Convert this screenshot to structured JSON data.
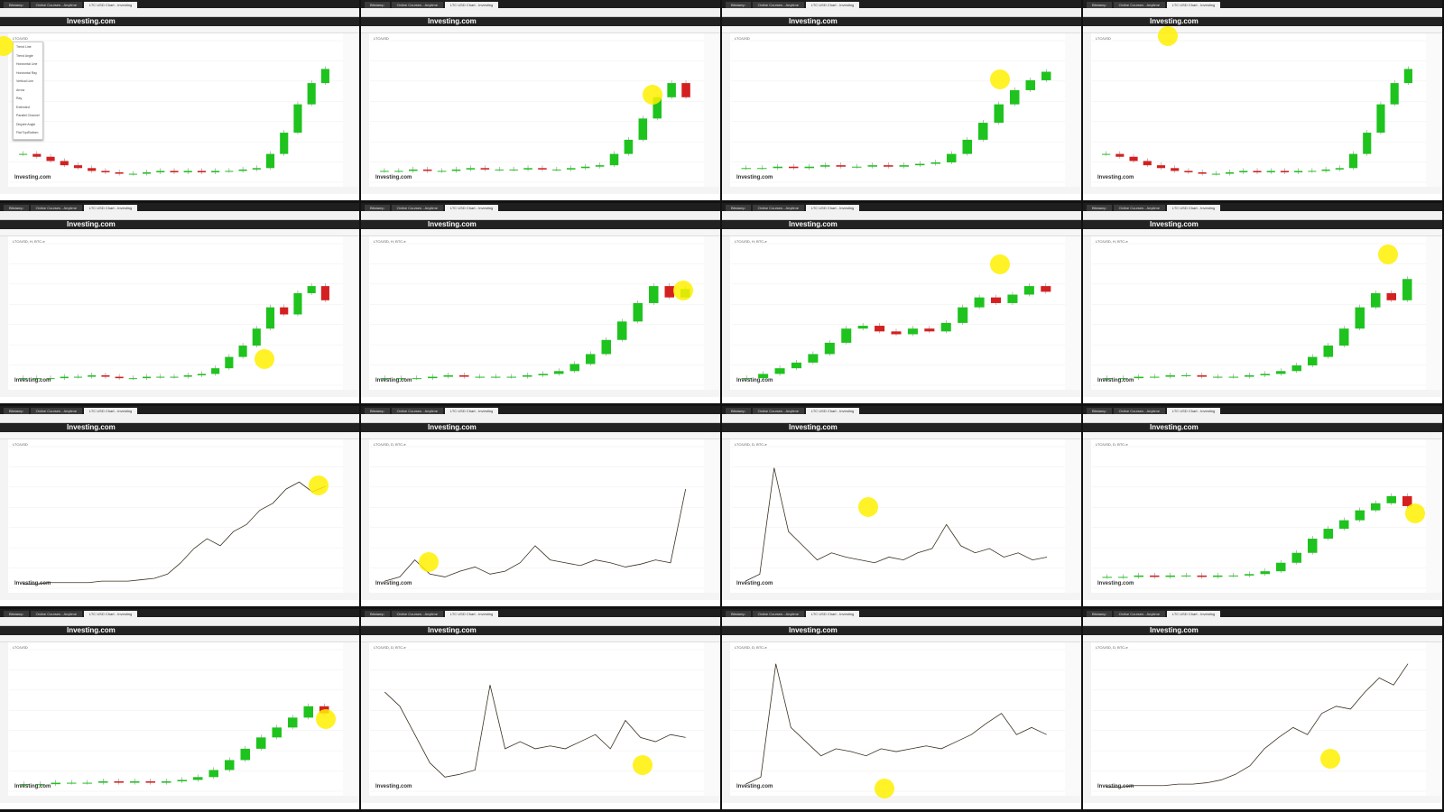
{
  "tabs": [
    "Bitstamp",
    "Online Courses - Anytime",
    "LTC USD Chart - Investing"
  ],
  "logo": "Investing.com",
  "watermark": "Investing.com",
  "tiles": [
    {
      "symbol": "LTC/USD",
      "type": "candle",
      "values": [
        20,
        18,
        15,
        12,
        10,
        8,
        7,
        6,
        6,
        7,
        8,
        7,
        8,
        7,
        8,
        8,
        9,
        10,
        20,
        35,
        55,
        70,
        80
      ],
      "menu": [
        "Trend Line",
        "Trend Angle",
        "Horizontal Line",
        "Horizontal Ray",
        "Vertical Line",
        "Arrow",
        "Ray",
        "Extended",
        "Parallel Channel",
        "Disjoint Angle",
        "Flat Top/Bottom"
      ]
    },
    {
      "symbol": "LTC/USD",
      "type": "candle",
      "values": [
        8,
        8,
        9,
        8,
        8,
        9,
        10,
        9,
        9,
        9,
        10,
        9,
        9,
        10,
        11,
        12,
        20,
        30,
        45,
        60,
        70,
        60
      ]
    },
    {
      "symbol": "LTC/USD",
      "type": "candle",
      "values": [
        10,
        10,
        11,
        10,
        11,
        12,
        11,
        11,
        12,
        11,
        12,
        13,
        14,
        20,
        30,
        42,
        55,
        65,
        72,
        78
      ]
    },
    {
      "symbol": "LTC/USD",
      "type": "candle",
      "values": [
        20,
        18,
        15,
        12,
        10,
        8,
        7,
        6,
        6,
        7,
        8,
        7,
        8,
        7,
        8,
        8,
        9,
        10,
        20,
        35,
        55,
        70,
        80
      ]
    },
    {
      "symbol": "LTC/USD, H, BTC-e",
      "type": "candle",
      "values": [
        5,
        5,
        5,
        6,
        6,
        7,
        6,
        5,
        5,
        6,
        6,
        6,
        7,
        8,
        12,
        20,
        28,
        40,
        55,
        50,
        65,
        70,
        60
      ]
    },
    {
      "symbol": "LTC/USD, H, BTC-e",
      "type": "candle",
      "values": [
        5,
        5,
        5,
        6,
        7,
        6,
        6,
        6,
        6,
        7,
        8,
        10,
        15,
        22,
        32,
        45,
        58,
        70,
        62,
        68
      ]
    },
    {
      "symbol": "LTC/USD, H, BTC-e",
      "type": "candle",
      "values": [
        5,
        8,
        12,
        16,
        22,
        30,
        40,
        42,
        38,
        36,
        40,
        38,
        44,
        55,
        62,
        58,
        64,
        70,
        66
      ]
    },
    {
      "symbol": "LTC/USD, H, BTC-e",
      "type": "candle",
      "values": [
        5,
        5,
        6,
        6,
        7,
        7,
        6,
        6,
        6,
        7,
        8,
        10,
        14,
        20,
        28,
        40,
        55,
        65,
        60,
        75
      ]
    },
    {
      "symbol": "LTC/USD",
      "type": "line",
      "values": [
        3,
        3,
        4,
        4,
        4,
        4,
        5,
        5,
        5,
        6,
        7,
        10,
        18,
        28,
        35,
        30,
        40,
        45,
        55,
        60,
        70,
        75,
        68,
        72
      ]
    },
    {
      "symbol": "LTC/USD, D, BTC-e",
      "type": "line",
      "values": [
        5,
        8,
        20,
        10,
        8,
        12,
        15,
        10,
        12,
        18,
        30,
        20,
        18,
        16,
        20,
        18,
        15,
        17,
        20,
        18,
        70
      ]
    },
    {
      "symbol": "LTC/USD, D, BTC-e",
      "type": "line",
      "values": [
        5,
        10,
        85,
        40,
        30,
        20,
        25,
        22,
        20,
        18,
        22,
        20,
        25,
        28,
        45,
        30,
        25,
        28,
        22,
        25,
        20,
        22
      ]
    },
    {
      "symbol": "LTC/USD, D, BTC-e",
      "type": "candle",
      "values": [
        8,
        8,
        9,
        8,
        9,
        9,
        8,
        9,
        9,
        10,
        12,
        18,
        25,
        35,
        42,
        48,
        55,
        60,
        65,
        58
      ]
    },
    {
      "symbol": "LTC/USD",
      "type": "candle",
      "values": [
        5,
        5,
        6,
        6,
        6,
        7,
        6,
        7,
        6,
        7,
        8,
        10,
        15,
        22,
        30,
        38,
        45,
        52,
        60,
        55
      ]
    },
    {
      "symbol": "LTC/USD, D, BTC-e",
      "type": "line",
      "values": [
        70,
        60,
        40,
        20,
        10,
        12,
        15,
        75,
        30,
        35,
        30,
        32,
        30,
        35,
        40,
        30,
        50,
        38,
        35,
        40,
        38
      ]
    },
    {
      "symbol": "LTC/USD, D, BTC-e",
      "type": "line",
      "values": [
        5,
        10,
        90,
        45,
        35,
        25,
        30,
        28,
        25,
        30,
        28,
        30,
        32,
        30,
        35,
        40,
        48,
        55,
        40,
        45,
        40
      ]
    },
    {
      "symbol": "LTC/USD, D, BTC-e",
      "type": "line",
      "values": [
        3,
        3,
        4,
        4,
        4,
        5,
        5,
        6,
        8,
        12,
        18,
        30,
        38,
        45,
        40,
        55,
        60,
        58,
        70,
        80,
        75,
        90
      ]
    }
  ]
}
